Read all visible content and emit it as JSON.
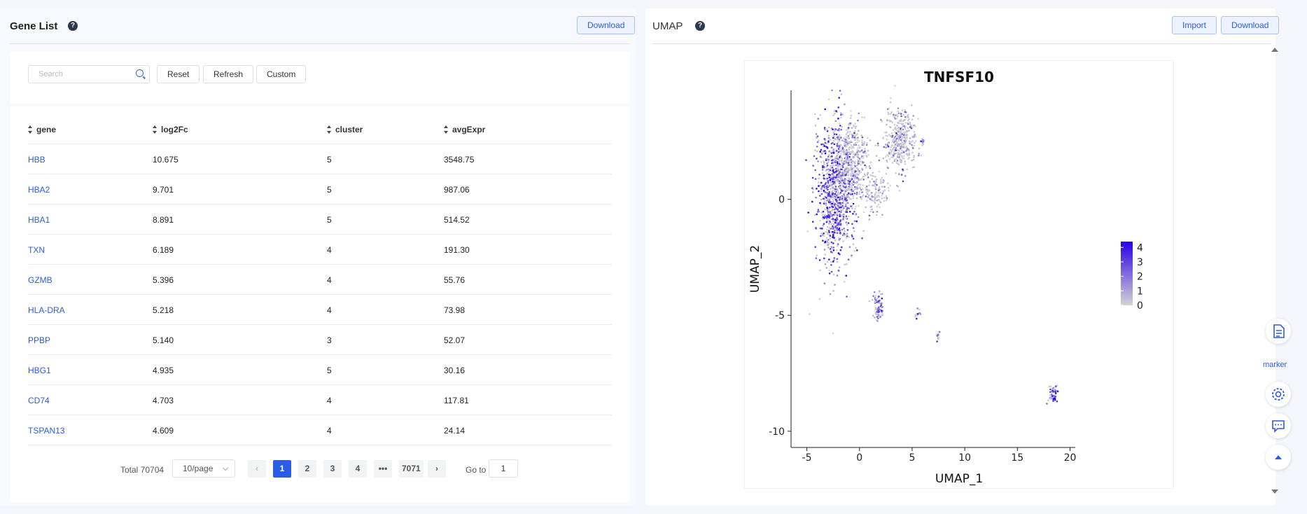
{
  "gene_list": {
    "title": "Gene List",
    "help_icon": "?",
    "download_label": "Download",
    "search_placeholder": "Search",
    "search_value": "",
    "reset_label": "Reset",
    "refresh_label": "Refresh",
    "custom_label": "Custom",
    "columns": [
      "gene",
      "log2Fc",
      "cluster",
      "avgExpr"
    ],
    "rows": [
      {
        "gene": "HBB",
        "log2Fc": "10.675",
        "cluster": "5",
        "avgExpr": "3548.75"
      },
      {
        "gene": "HBA2",
        "log2Fc": "9.701",
        "cluster": "5",
        "avgExpr": "987.06"
      },
      {
        "gene": "HBA1",
        "log2Fc": "8.891",
        "cluster": "5",
        "avgExpr": "514.52"
      },
      {
        "gene": "TXN",
        "log2Fc": "6.189",
        "cluster": "4",
        "avgExpr": "191.30"
      },
      {
        "gene": "GZMB",
        "log2Fc": "5.396",
        "cluster": "4",
        "avgExpr": "55.76"
      },
      {
        "gene": "HLA-DRA",
        "log2Fc": "5.218",
        "cluster": "4",
        "avgExpr": "73.98"
      },
      {
        "gene": "PPBP",
        "log2Fc": "5.140",
        "cluster": "3",
        "avgExpr": "52.07"
      },
      {
        "gene": "HBG1",
        "log2Fc": "4.935",
        "cluster": "5",
        "avgExpr": "30.16"
      },
      {
        "gene": "CD74",
        "log2Fc": "4.703",
        "cluster": "4",
        "avgExpr": "117.81"
      },
      {
        "gene": "TSPAN13",
        "log2Fc": "4.609",
        "cluster": "4",
        "avgExpr": "24.14"
      }
    ],
    "pagination": {
      "total_label": "Total 70704",
      "page_size": "10/page",
      "pages": [
        "1",
        "2",
        "3",
        "4",
        "•••",
        "7071"
      ],
      "active_page": "1",
      "goto_label": "Go to",
      "goto_value": "1"
    }
  },
  "umap": {
    "title": "UMAP",
    "help_icon": "?",
    "import_label": "Import",
    "download_label": "Download"
  },
  "chart_data": {
    "type": "scatter",
    "title": "TNFSF10",
    "xlabel": "UMAP_1",
    "ylabel": "UMAP_2",
    "xlim": [
      -6.5,
      20.5
    ],
    "ylim": [
      -10.7,
      4.7
    ],
    "xticks": [
      -5,
      0,
      5,
      10,
      15,
      20
    ],
    "yticks": [
      -10,
      -5,
      0
    ],
    "legend": {
      "position": "right",
      "ticks": [
        4,
        3,
        2,
        1,
        0
      ],
      "low_color": "#d3d3d3",
      "high_color": "#2a00e6"
    },
    "clusters": [
      {
        "cx": -2.3,
        "cy": 0.3,
        "rx": 1.8,
        "ry": 3.0,
        "n": 900,
        "expr": 2.8
      },
      {
        "cx": -0.8,
        "cy": 1.6,
        "rx": 1.6,
        "ry": 1.8,
        "n": 420,
        "expr": 0.6
      },
      {
        "cx": 3.9,
        "cy": 2.5,
        "rx": 1.5,
        "ry": 1.4,
        "n": 380,
        "expr": 0.8
      },
      {
        "cx": 1.6,
        "cy": 0.3,
        "rx": 1.3,
        "ry": 0.9,
        "n": 120,
        "expr": 0.5
      },
      {
        "cx": 6.0,
        "cy": 2.5,
        "rx": 0.12,
        "ry": 0.12,
        "n": 12,
        "expr": 1.8
      },
      {
        "cx": 1.8,
        "cy": -4.7,
        "rx": 0.45,
        "ry": 0.55,
        "n": 70,
        "expr": 1.8
      },
      {
        "cx": 5.5,
        "cy": -4.9,
        "rx": 0.3,
        "ry": 0.25,
        "n": 12,
        "expr": 2.3
      },
      {
        "cx": 7.5,
        "cy": -5.9,
        "rx": 0.15,
        "ry": 0.25,
        "n": 10,
        "expr": 2.2
      },
      {
        "cx": 18.4,
        "cy": -8.4,
        "rx": 0.45,
        "ry": 0.35,
        "n": 60,
        "expr": 3.0
      }
    ]
  },
  "float_toolbar": {
    "marker_label": "marker"
  }
}
